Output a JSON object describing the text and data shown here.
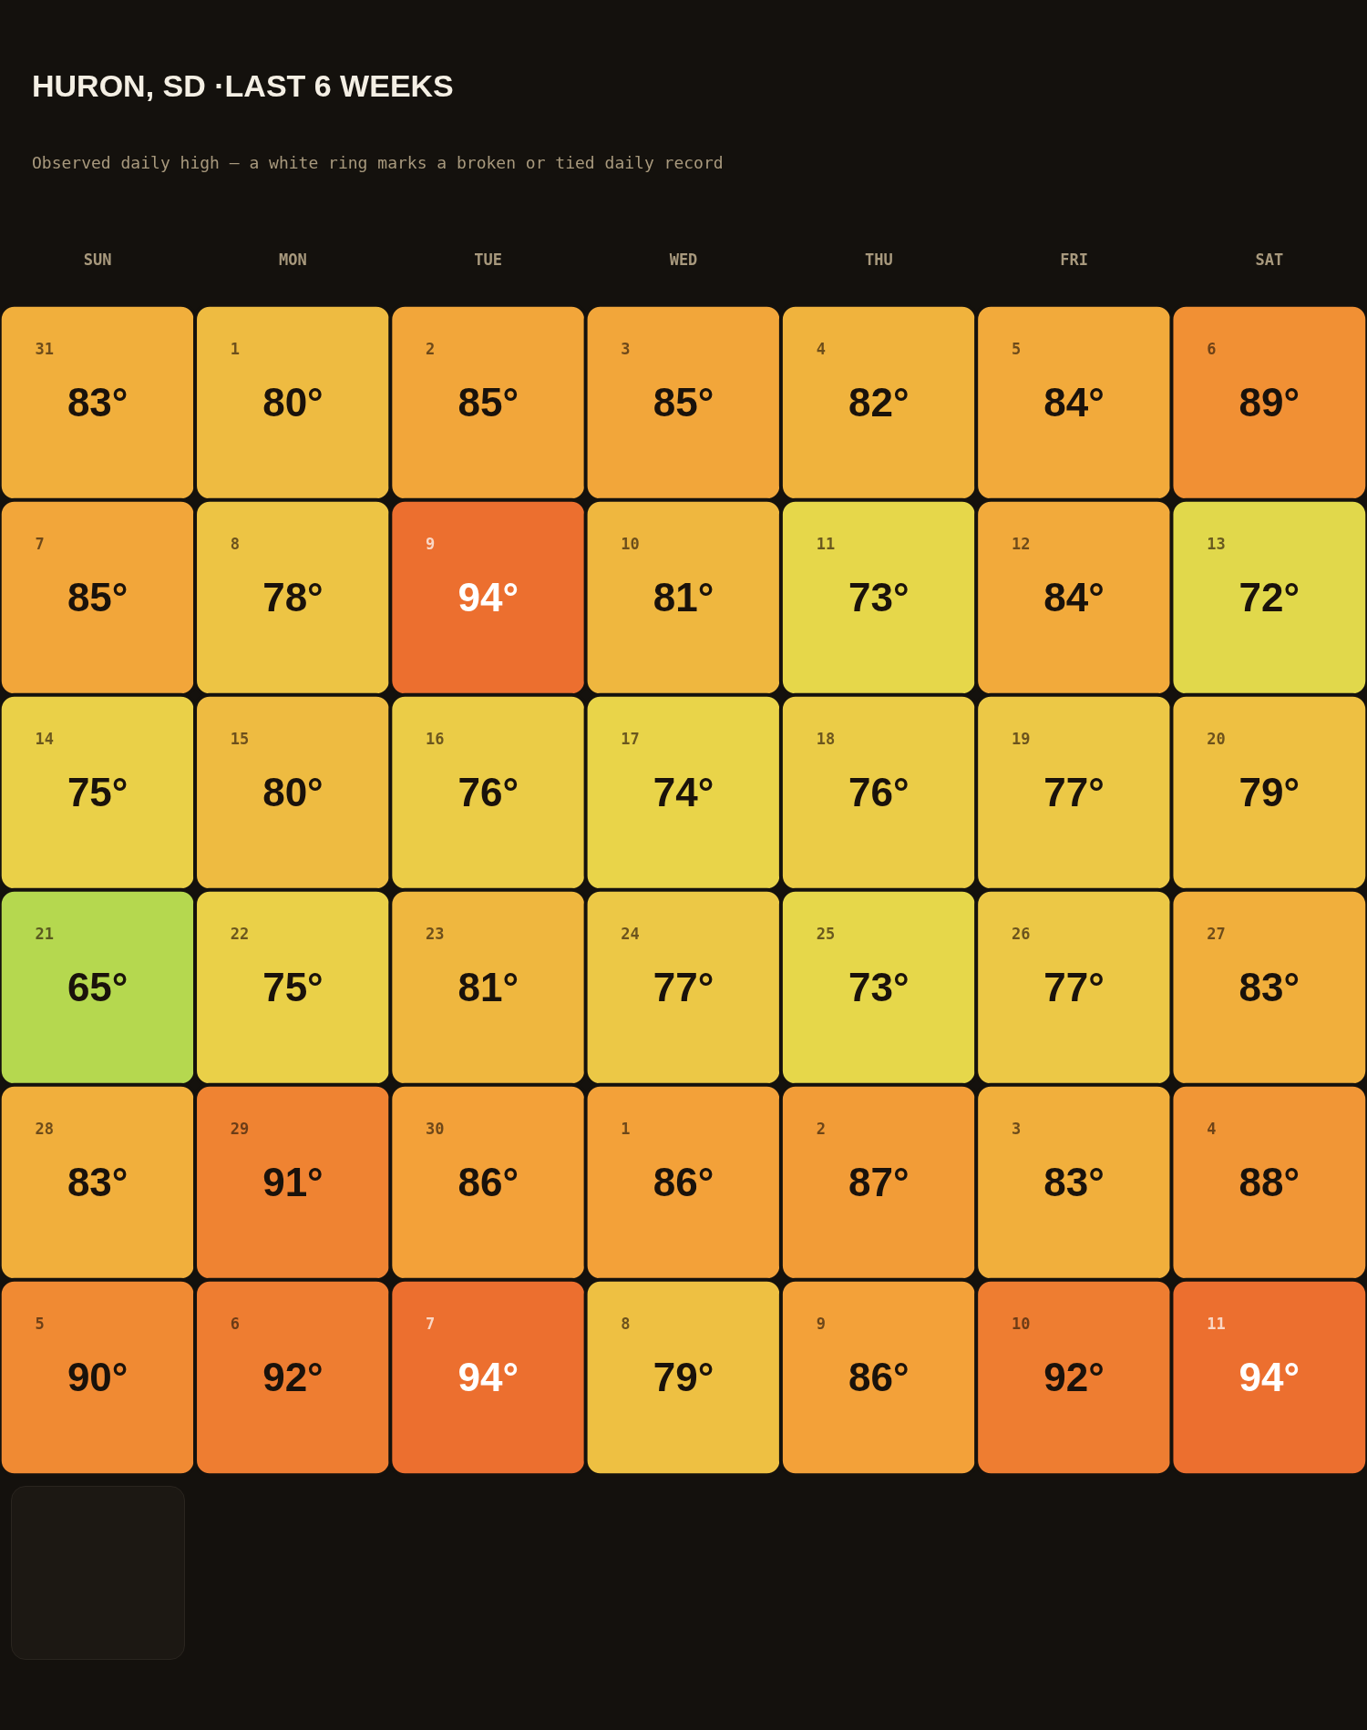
{
  "chart_data": {
    "type": "heatmap",
    "title": "HURON, SD ·LAST 6 WEEKS",
    "subtitle": "Observed daily high — a white ring marks a broken or tied daily record",
    "categories": [
      "SUN",
      "MON",
      "TUE",
      "WED",
      "THU",
      "FRI",
      "SAT"
    ],
    "y_categories": [
      null,
      null,
      null,
      null,
      null,
      null
    ],
    "cells": [
      [
        83,
        80,
        85,
        85,
        82,
        84,
        89
      ],
      [
        85,
        78,
        94,
        81,
        73,
        84,
        72
      ],
      [
        75,
        80,
        76,
        74,
        76,
        77,
        79
      ],
      [
        65,
        75,
        81,
        77,
        73,
        77,
        83
      ],
      [
        83,
        91,
        86,
        86,
        87,
        83,
        88
      ],
      [
        90,
        92,
        94,
        79,
        86,
        92,
        94
      ]
    ],
    "cell_labels": [
      [
        "83°",
        "80°",
        "85°",
        "85°",
        "82°",
        "84°",
        "89°"
      ],
      [
        "85°",
        "78°",
        "94°",
        "81°",
        "73°",
        "84°",
        "72°"
      ],
      [
        "75°",
        "80°",
        "76°",
        "74°",
        "76°",
        "77°",
        "79°"
      ],
      [
        "65°",
        "75°",
        "81°",
        "77°",
        "73°",
        "77°",
        "83°"
      ],
      [
        "83°",
        "91°",
        "86°",
        "86°",
        "87°",
        "83°",
        "88°"
      ],
      [
        "90°",
        "92°",
        "94°",
        "79°",
        "86°",
        "92°",
        "94°"
      ]
    ],
    "colors": [
      "#b5d84f",
      "#d2da4c",
      "#e8d74a",
      "#ecc645",
      "#f0b53e",
      "#f3a339",
      "#f08b33",
      "#ec6f2f"
    ],
    "annotations": [
      "31",
      "1",
      "2",
      "3",
      "4",
      "5",
      "6",
      "7",
      "8",
      "9",
      "10",
      "11",
      "12",
      "13",
      "14",
      "15",
      "16",
      "17",
      "18",
      "19",
      "20",
      "21",
      "22",
      "23",
      "24",
      "25",
      "26",
      "27",
      "28",
      "29",
      "30",
      "1",
      "2",
      "3",
      "4",
      "5",
      "6",
      "7",
      "8",
      "9",
      "10",
      "11"
    ]
  }
}
